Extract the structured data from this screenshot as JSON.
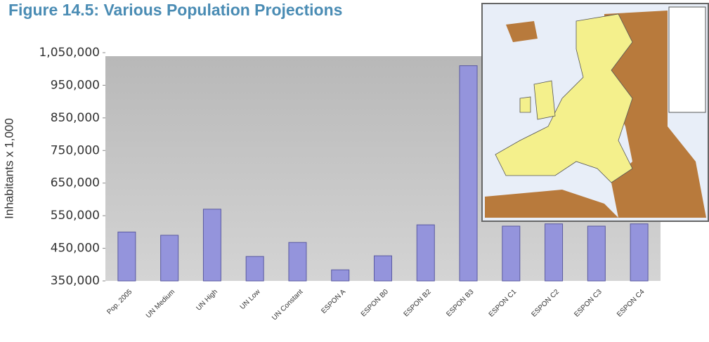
{
  "chart_data": {
    "type": "bar",
    "title": "Figure 14.5: Various Population Projections",
    "y_label": "Inhabitants x 1,000",
    "categories": [
      "Pop. 2005",
      "UN Medium",
      "UN High",
      "UN Low",
      "UN Constant",
      "ESPON A",
      "ESPON B0",
      "ESPON B2",
      "ESPON B3",
      "ESPON C1",
      "ESPON C2",
      "ESPON C3",
      "ESPON C4"
    ],
    "values": [
      500000,
      490000,
      570000,
      425000,
      468000,
      384000,
      427000,
      522000,
      1010000,
      518000,
      525000,
      518000,
      525000
    ],
    "color": "#9494dc",
    "ylim": [
      350000,
      1050000
    ],
    "yticks": [
      {
        "value": 350000,
        "label": "350,000"
      },
      {
        "value": 450000,
        "label": "450,000"
      },
      {
        "value": 550000,
        "label": "550,000"
      },
      {
        "value": 650000,
        "label": "650,000"
      },
      {
        "value": 750000,
        "label": "750,000"
      },
      {
        "value": 850000,
        "label": "850,000"
      },
      {
        "value": 950000,
        "label": "950,000"
      },
      {
        "value": 1050000,
        "label": "1,050,000"
      }
    ],
    "grid": false
  }
}
